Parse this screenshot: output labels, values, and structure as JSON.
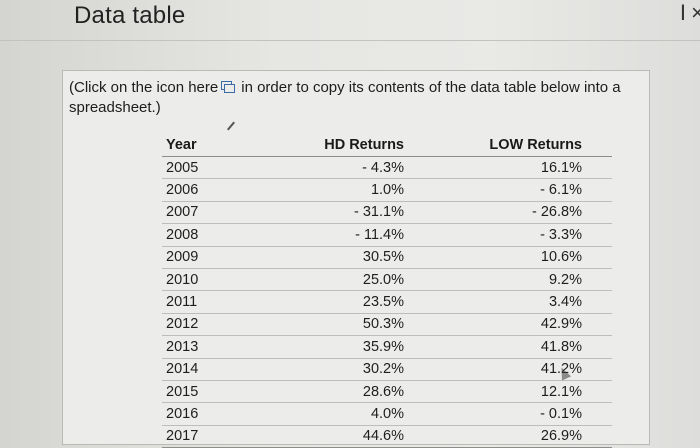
{
  "window": {
    "title": "Data table",
    "corner_glyph": "I",
    "close_glyph": "×"
  },
  "instructions": {
    "before_icon": "(Click on the icon here",
    "after_icon": "in order to copy its contents of the data table below into a spreadsheet.)",
    "icon": "copy-icon"
  },
  "table": {
    "headers": [
      "Year",
      "HD Returns",
      "LOW Returns"
    ],
    "rows": [
      {
        "year": "2005",
        "hd": "- 4.3%",
        "low": "16.1%"
      },
      {
        "year": "2006",
        "hd": "1.0%",
        "low": "- 6.1%"
      },
      {
        "year": "2007",
        "hd": "- 31.1%",
        "low": "- 26.8%"
      },
      {
        "year": "2008",
        "hd": "- 11.4%",
        "low": "- 3.3%"
      },
      {
        "year": "2009",
        "hd": "30.5%",
        "low": "10.6%"
      },
      {
        "year": "2010",
        "hd": "25.0%",
        "low": "9.2%"
      },
      {
        "year": "2011",
        "hd": "23.5%",
        "low": "3.4%"
      },
      {
        "year": "2012",
        "hd": "50.3%",
        "low": "42.9%"
      },
      {
        "year": "2013",
        "hd": "35.9%",
        "low": "41.8%"
      },
      {
        "year": "2014",
        "hd": "30.2%",
        "low": "41.2%"
      },
      {
        "year": "2015",
        "hd": "28.6%",
        "low": "12.1%"
      },
      {
        "year": "2016",
        "hd": "4.0%",
        "low": "- 0.1%"
      },
      {
        "year": "2017",
        "hd": "44.6%",
        "low": "26.9%"
      }
    ]
  }
}
